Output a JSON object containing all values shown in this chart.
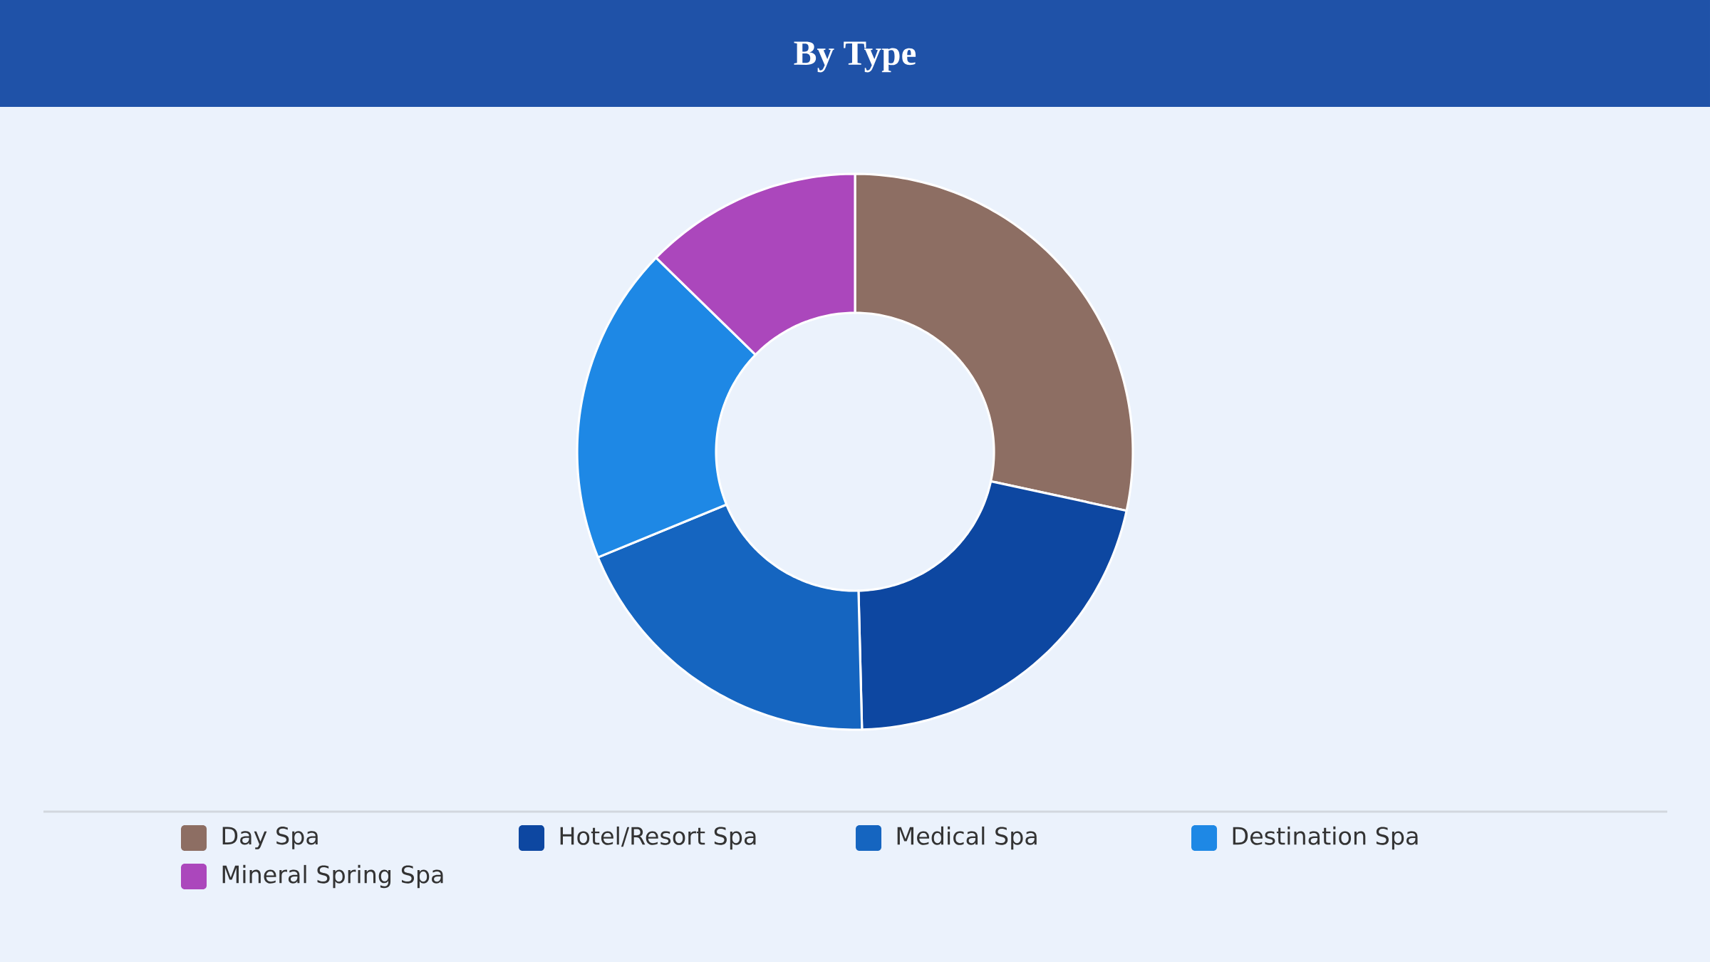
{
  "chart_data": {
    "type": "donut",
    "title": "By Type",
    "categories": [
      "Day Spa",
      "Hotel/Resort Spa",
      "Medical Spa",
      "Destination Spa",
      "Mineral Spring Spa"
    ],
    "values": [
      28.4,
      21.2,
      19.2,
      18.5,
      12.7
    ],
    "colors": [
      "#8d6e63",
      "#0d47a1",
      "#1565c0",
      "#1e88e5",
      "#ab47bc"
    ],
    "legend": "bottom"
  }
}
